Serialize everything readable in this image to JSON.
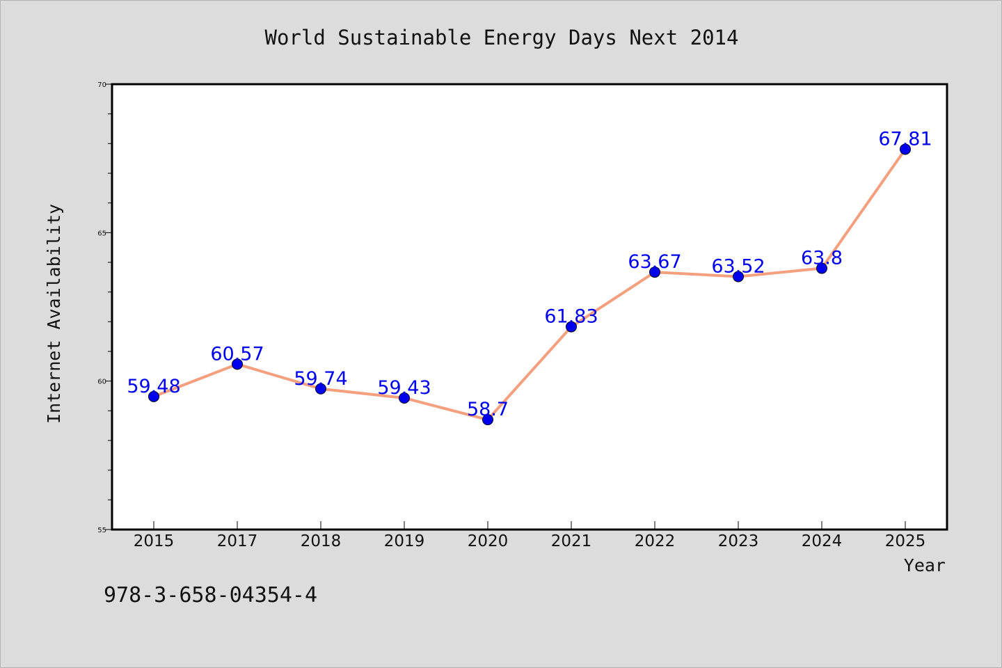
{
  "chart_data": {
    "type": "line",
    "title": "World Sustainable Energy Days Next 2014",
    "xlabel": "Year",
    "ylabel": "Internet Availability",
    "categories": [
      "2015",
      "2017",
      "2018",
      "2019",
      "2020",
      "2021",
      "2022",
      "2023",
      "2024",
      "2025"
    ],
    "series": [
      {
        "values": [
          59.48,
          60.57,
          59.74,
          59.43,
          58.7,
          61.83,
          63.67,
          63.52,
          63.8,
          67.81
        ],
        "data_labels": [
          "59.48",
          "60.57",
          "59.74",
          "59.43",
          "58.7",
          "61.83",
          "63.67",
          "63.52",
          "63.8",
          "67.81"
        ],
        "line_color": "#f4a07f",
        "marker_color": "#0000ee"
      }
    ],
    "ylim": [
      55,
      70
    ],
    "yticks": [
      "55",
      "60",
      "65",
      "70"
    ],
    "grid": false,
    "legend": "none",
    "label_color": "#0000ee",
    "background_color": "#dcdcdc",
    "plot_background_color": "#ffffff"
  },
  "footer": {
    "isbn": "978-3-658-04354-4"
  }
}
